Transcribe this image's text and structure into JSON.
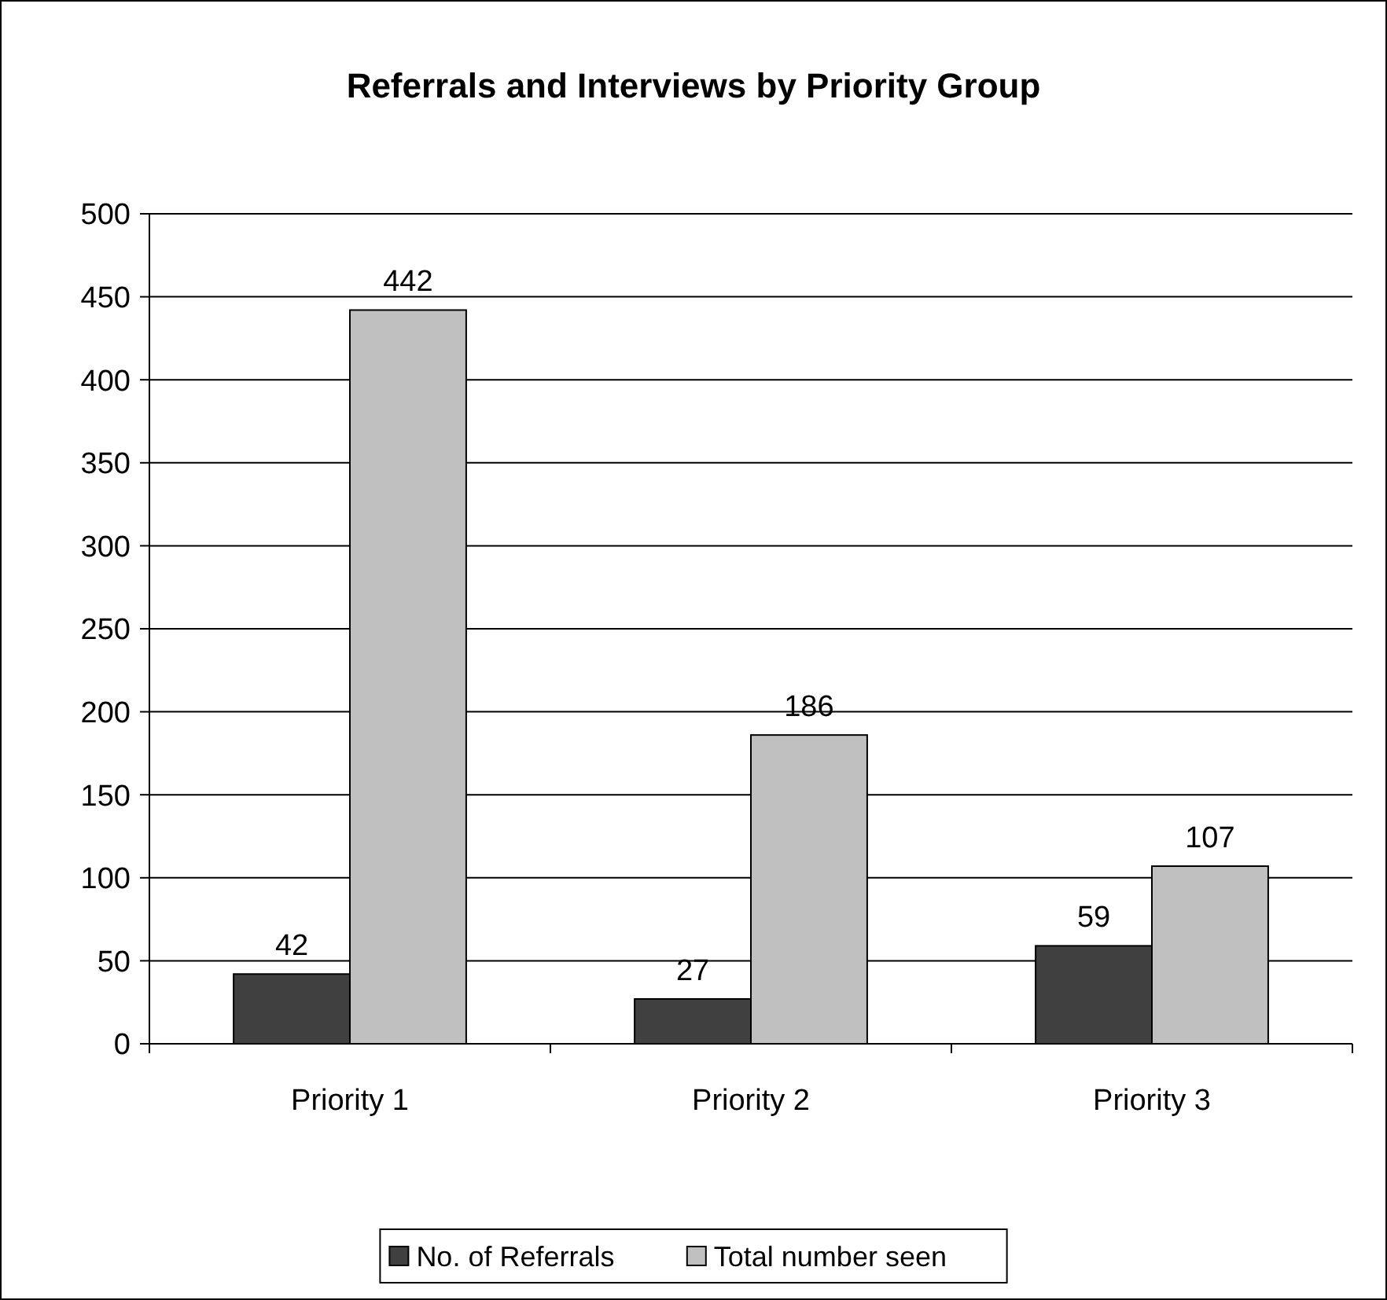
{
  "chart_data": {
    "type": "bar",
    "title": "Referrals and Interviews by Priority Group",
    "categories": [
      "Priority 1",
      "Priority 2",
      "Priority 3"
    ],
    "series": [
      {
        "name": "No. of Referrals",
        "color": "#404040",
        "values": [
          42,
          27,
          59
        ]
      },
      {
        "name": "Total number seen",
        "color": "#c0c0c0",
        "values": [
          442,
          186,
          107
        ]
      }
    ],
    "ylim": [
      0,
      500
    ],
    "yticks": [
      0,
      50,
      100,
      150,
      200,
      250,
      300,
      350,
      400,
      450,
      500
    ],
    "grid": "y",
    "data_labels": true,
    "legend": "bottom"
  }
}
